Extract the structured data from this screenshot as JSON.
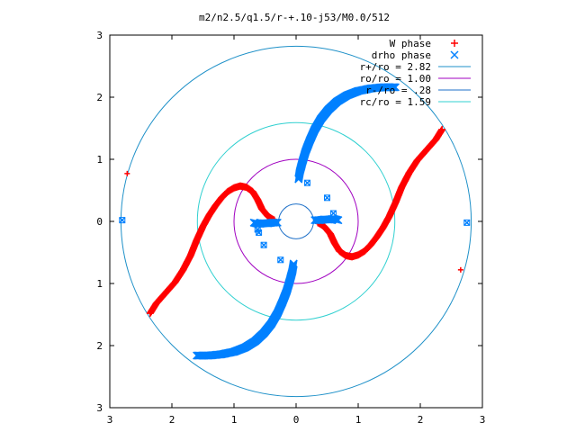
{
  "chart_data": {
    "type": "scatter",
    "title": "m2/n2.5/q1.5/r-+.10-j53/M0.0/512",
    "xlabel": "",
    "ylabel": "",
    "xlim": [
      -3,
      3
    ],
    "ylim": [
      -3,
      3
    ],
    "x_ticks": [
      -3,
      -2,
      -1,
      0,
      1,
      2,
      3
    ],
    "y_ticks": [
      -3,
      -2,
      -1,
      0,
      1,
      2,
      3
    ],
    "x_tick_labels": [
      "3",
      "2",
      "1",
      "0",
      "1",
      "2",
      "3"
    ],
    "y_tick_labels": [
      "3",
      "2",
      "1",
      "0",
      "1",
      "2",
      "3"
    ],
    "grid": false,
    "legend_position": "top-right",
    "legend": [
      {
        "label": "W phase",
        "kind": "points",
        "marker": "+",
        "color": "#ff0000"
      },
      {
        "label": "drho phase",
        "kind": "points",
        "marker": "x",
        "color": "#0080ff"
      },
      {
        "label": "r+/ro = 2.82",
        "kind": "line",
        "color": "#1e90c8"
      },
      {
        "label": "ro/ro = 1.00",
        "kind": "line",
        "color": "#a000c0"
      },
      {
        "label": "r-/ro = .28",
        "kind": "line",
        "color": "#1e70c8"
      },
      {
        "label": "rc/ro = 1.59",
        "kind": "line",
        "color": "#30d0d0"
      }
    ],
    "circles": [
      {
        "name": "r+/ro",
        "radius": 2.82,
        "color": "#1e90c8"
      },
      {
        "name": "ro/ro",
        "radius": 1.0,
        "color": "#a000c0"
      },
      {
        "name": "r-/ro",
        "radius": 0.28,
        "color": "#1e70c8"
      },
      {
        "name": "rc/ro",
        "radius": 1.59,
        "color": "#30d0d0"
      }
    ],
    "series": [
      {
        "name": "W phase",
        "color": "#ff0000",
        "marker": "+",
        "arms": [
          [
            [
              -0.35,
              0.02
            ],
            [
              -0.45,
              0.08
            ],
            [
              -0.55,
              0.2
            ],
            [
              -0.62,
              0.35
            ],
            [
              -0.7,
              0.48
            ],
            [
              -0.8,
              0.55
            ],
            [
              -0.9,
              0.57
            ],
            [
              -1.0,
              0.54
            ],
            [
              -1.1,
              0.48
            ],
            [
              -1.2,
              0.38
            ],
            [
              -1.3,
              0.25
            ],
            [
              -1.4,
              0.1
            ],
            [
              -1.5,
              -0.08
            ],
            [
              -1.6,
              -0.3
            ],
            [
              -1.7,
              -0.55
            ],
            [
              -1.82,
              -0.78
            ],
            [
              -1.95,
              -0.98
            ],
            [
              -2.1,
              -1.15
            ],
            [
              -2.25,
              -1.32
            ],
            [
              -2.35,
              -1.48
            ]
          ],
          [
            [
              0.35,
              -0.02
            ],
            [
              0.45,
              -0.08
            ],
            [
              0.55,
              -0.2
            ],
            [
              0.62,
              -0.35
            ],
            [
              0.7,
              -0.48
            ],
            [
              0.8,
              -0.55
            ],
            [
              0.9,
              -0.57
            ],
            [
              1.0,
              -0.54
            ],
            [
              1.1,
              -0.48
            ],
            [
              1.2,
              -0.38
            ],
            [
              1.3,
              -0.25
            ],
            [
              1.4,
              -0.1
            ],
            [
              1.5,
              0.08
            ],
            [
              1.6,
              0.3
            ],
            [
              1.7,
              0.55
            ],
            [
              1.82,
              0.78
            ],
            [
              1.95,
              0.98
            ],
            [
              2.1,
              1.15
            ],
            [
              2.25,
              1.32
            ],
            [
              2.35,
              1.48
            ]
          ]
        ],
        "isolated": [
          [
            -2.72,
            0.77
          ],
          [
            2.65,
            -0.78
          ]
        ]
      },
      {
        "name": "drho phase",
        "color": "#0080ff",
        "marker": "x",
        "arms": [
          [
            [
              0.04,
              0.68
            ],
            [
              0.06,
              0.8
            ],
            [
              0.1,
              0.95
            ],
            [
              0.15,
              1.12
            ],
            [
              0.22,
              1.3
            ],
            [
              0.3,
              1.48
            ],
            [
              0.4,
              1.65
            ],
            [
              0.52,
              1.8
            ],
            [
              0.66,
              1.93
            ],
            [
              0.82,
              2.03
            ],
            [
              1.0,
              2.1
            ],
            [
              1.2,
              2.14
            ],
            [
              1.4,
              2.16
            ],
            [
              1.6,
              2.16
            ]
          ],
          [
            [
              -0.04,
              -0.68
            ],
            [
              -0.06,
              -0.8
            ],
            [
              -0.1,
              -0.95
            ],
            [
              -0.15,
              -1.12
            ],
            [
              -0.22,
              -1.3
            ],
            [
              -0.3,
              -1.48
            ],
            [
              -0.4,
              -1.65
            ],
            [
              -0.52,
              -1.8
            ],
            [
              -0.66,
              -1.93
            ],
            [
              -0.82,
              -2.03
            ],
            [
              -1.0,
              -2.1
            ],
            [
              -1.2,
              -2.14
            ],
            [
              -1.4,
              -2.16
            ],
            [
              -1.6,
              -2.16
            ]
          ],
          [
            [
              -0.3,
              -0.02
            ],
            [
              -0.38,
              -0.02
            ],
            [
              -0.45,
              -0.03
            ],
            [
              -0.52,
              -0.03
            ],
            [
              -0.6,
              -0.04
            ],
            [
              -0.68,
              -0.02
            ]
          ],
          [
            [
              0.3,
              0.02
            ],
            [
              0.38,
              0.02
            ],
            [
              0.45,
              0.03
            ],
            [
              0.52,
              0.03
            ],
            [
              0.6,
              0.04
            ],
            [
              0.68,
              0.02
            ]
          ]
        ],
        "isolated": [
          [
            -2.8,
            0.02
          ],
          [
            2.75,
            -0.02
          ],
          [
            0.5,
            0.38
          ],
          [
            0.6,
            0.13
          ],
          [
            -0.62,
            -0.13
          ],
          [
            -0.52,
            -0.38
          ],
          [
            -0.25,
            -0.62
          ],
          [
            0.18,
            0.62
          ],
          [
            -0.6,
            -0.18
          ]
        ]
      }
    ]
  }
}
